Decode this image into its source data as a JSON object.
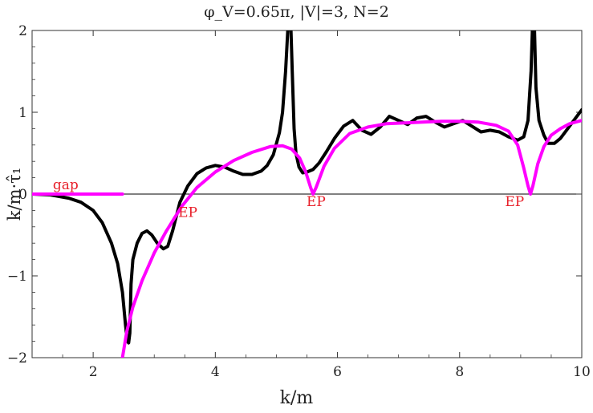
{
  "title": "φ_V=0.65π,  |V|=3,  N=2",
  "chart_data": {
    "type": "line",
    "title": "φ_V=0.65π,  |V|=3,  N=2",
    "xlabel": "k/m",
    "ylabel": "k/m·τ̂₁",
    "xlim": [
      1,
      10
    ],
    "ylim": [
      -2,
      2
    ],
    "xticks": [
      2,
      4,
      6,
      8,
      10
    ],
    "yticks": [
      -2,
      -1,
      0,
      1,
      2
    ],
    "grid": false,
    "colors": {
      "black_curve": "#000000",
      "magenta_curve": "#ff00ff",
      "annotation": "#e8202a",
      "zero_line": "#000000"
    },
    "series": [
      {
        "color": "#000000",
        "x": [
          1.0,
          1.3,
          1.6,
          1.8,
          2.0,
          2.15,
          2.3,
          2.4,
          2.48,
          2.53,
          2.56,
          2.58,
          2.6,
          2.62,
          2.65,
          2.72,
          2.8,
          2.88,
          2.96,
          3.05,
          3.15,
          3.22,
          3.3,
          3.42,
          3.55,
          3.7,
          3.85,
          4.0,
          4.15,
          4.3,
          4.45,
          4.6,
          4.75,
          4.85,
          4.95,
          5.05,
          5.1,
          5.15,
          5.2,
          5.23,
          5.26,
          5.29,
          5.32,
          5.37,
          5.43,
          5.5,
          5.6,
          5.7,
          5.82,
          5.95,
          6.1,
          6.25,
          6.4,
          6.55,
          6.7,
          6.85,
          7.0,
          7.15,
          7.3,
          7.45,
          7.6,
          7.75,
          7.9,
          8.05,
          8.2,
          8.35,
          8.5,
          8.65,
          8.8,
          8.95,
          9.05,
          9.12,
          9.17,
          9.2,
          9.22,
          9.25,
          9.3,
          9.38,
          9.45,
          9.55,
          9.65,
          9.75,
          9.85,
          10.0
        ],
        "y": [
          0.0,
          -0.01,
          -0.05,
          -0.1,
          -0.2,
          -0.35,
          -0.6,
          -0.85,
          -1.2,
          -1.6,
          -1.8,
          -1.82,
          -1.7,
          -1.1,
          -0.8,
          -0.6,
          -0.48,
          -0.45,
          -0.5,
          -0.6,
          -0.67,
          -0.64,
          -0.45,
          -0.1,
          0.1,
          0.25,
          0.32,
          0.35,
          0.33,
          0.28,
          0.24,
          0.24,
          0.28,
          0.35,
          0.48,
          0.75,
          1.0,
          1.5,
          2.2,
          2.2,
          1.5,
          0.8,
          0.5,
          0.33,
          0.26,
          0.27,
          0.3,
          0.38,
          0.52,
          0.68,
          0.83,
          0.9,
          0.78,
          0.73,
          0.82,
          0.95,
          0.9,
          0.85,
          0.93,
          0.95,
          0.88,
          0.82,
          0.86,
          0.9,
          0.83,
          0.76,
          0.78,
          0.76,
          0.7,
          0.66,
          0.7,
          0.9,
          1.5,
          2.2,
          2.2,
          1.3,
          0.9,
          0.72,
          0.62,
          0.62,
          0.68,
          0.78,
          0.88,
          1.03
        ]
      },
      {
        "color": "#ff00ff",
        "x": [
          2.48,
          2.55,
          2.65,
          2.8,
          3.0,
          3.2,
          3.45,
          3.7,
          4.0,
          4.3,
          4.6,
          4.9,
          5.1,
          5.25,
          5.38,
          5.48,
          5.56,
          5.6,
          5.65,
          5.78,
          5.95,
          6.2,
          6.5,
          6.8,
          7.1,
          7.4,
          7.7,
          8.0,
          8.3,
          8.6,
          8.8,
          8.95,
          9.05,
          9.12,
          9.16,
          9.2,
          9.28,
          9.38,
          9.5,
          9.65,
          9.8,
          10.0
        ],
        "y": [
          -2.0,
          -1.68,
          -1.38,
          -1.06,
          -0.72,
          -0.45,
          -0.15,
          0.08,
          0.27,
          0.41,
          0.51,
          0.58,
          0.59,
          0.55,
          0.44,
          0.27,
          0.08,
          0.0,
          0.08,
          0.34,
          0.56,
          0.74,
          0.82,
          0.86,
          0.87,
          0.88,
          0.89,
          0.89,
          0.88,
          0.84,
          0.77,
          0.6,
          0.32,
          0.1,
          0.0,
          0.1,
          0.37,
          0.58,
          0.72,
          0.8,
          0.86,
          0.9
        ]
      },
      {
        "color": "#ff00ff",
        "x": [
          1.0,
          2.48
        ],
        "y": [
          0.0,
          0.0
        ]
      }
    ],
    "annotations": [
      {
        "text": "gap",
        "x": 1.55,
        "y": 0.12
      },
      {
        "text": "EP",
        "x": 3.55,
        "y": -0.22
      },
      {
        "text": "EP",
        "x": 5.65,
        "y": -0.09
      },
      {
        "text": "EP",
        "x": 8.9,
        "y": -0.09
      }
    ]
  }
}
